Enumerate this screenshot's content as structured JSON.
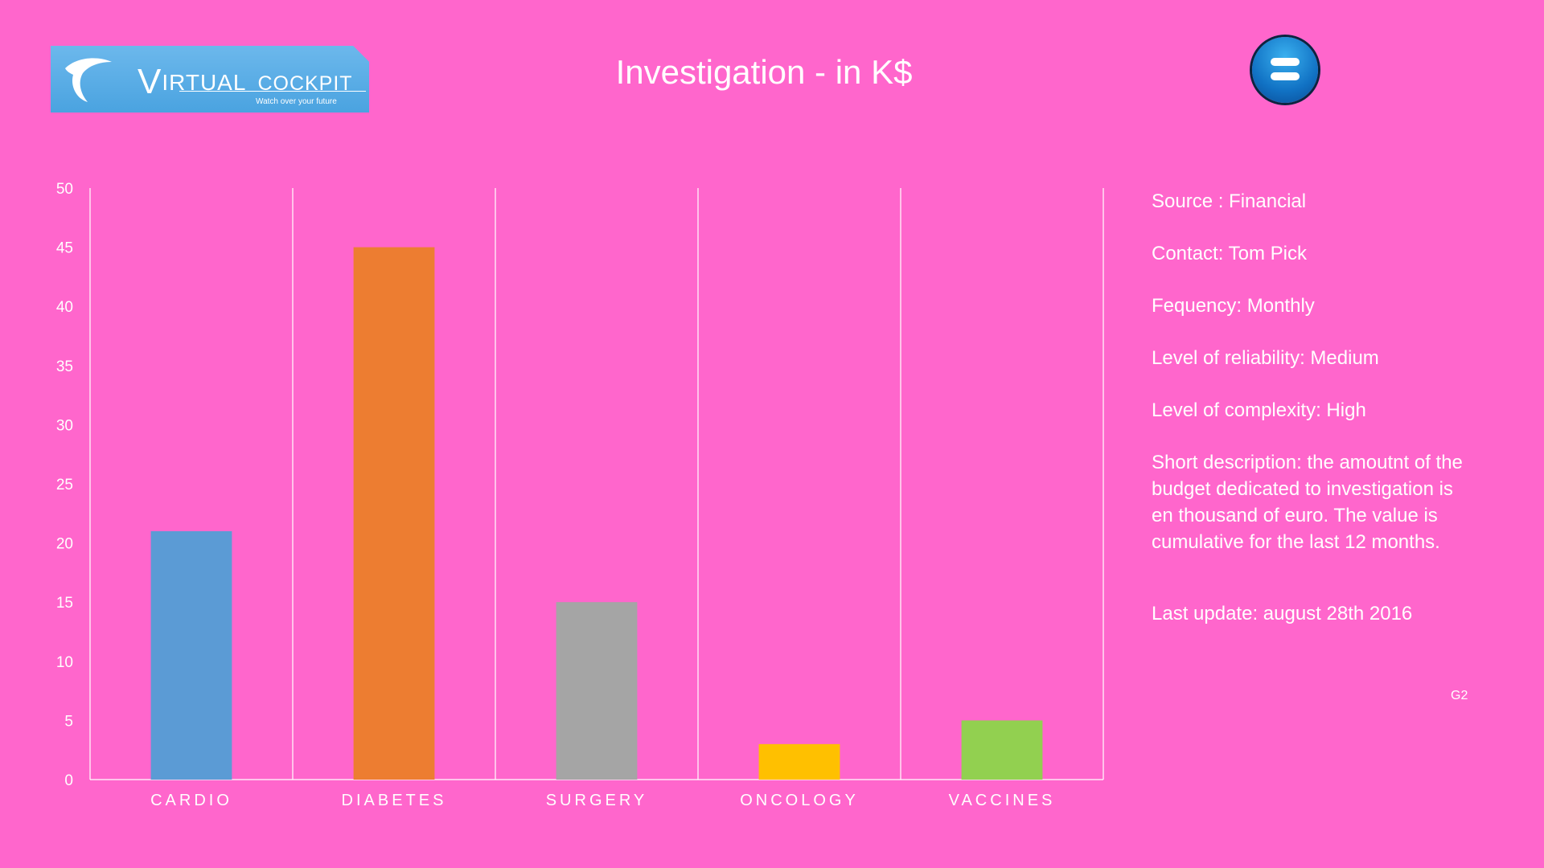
{
  "header": {
    "logo": {
      "brand_v": "V",
      "brand_rest": "IRTUAL",
      "brand_cockpit": "COCKPIT",
      "tagline": "Watch over your future"
    },
    "title": "Investigation - in K$",
    "menu_icon": "menu-icon"
  },
  "colors": {
    "background": "#ff66cc",
    "cardio": "#5b9bd5",
    "diabetes": "#ed7d31",
    "surgery": "#a5a5a5",
    "oncology": "#ffc000",
    "vaccines": "#92d050"
  },
  "chart_data": {
    "type": "bar",
    "categories": [
      "CARDIO",
      "DIABETES",
      "SURGERY",
      "ONCOLOGY",
      "VACCINES"
    ],
    "values": [
      21,
      45,
      15,
      3,
      5
    ],
    "colors": [
      "#5b9bd5",
      "#ed7d31",
      "#a5a5a5",
      "#ffc000",
      "#92d050"
    ],
    "ylim": [
      0,
      50
    ],
    "yticks": [
      0,
      5,
      10,
      15,
      20,
      25,
      30,
      35,
      40,
      45,
      50
    ],
    "grid": "vertical category separators"
  },
  "info": {
    "source": "Source : Financial",
    "contact": "Contact: Tom Pick",
    "frequency": "Fequency: Monthly",
    "reliability": "Level of reliability: Medium",
    "complexity": "Level of complexity:  High",
    "description": "Short description: the amoutnt of the budget dedicated to investigation is en thousand of euro.  The value is cumulative for the last 12 months.",
    "last_update": "Last update:  august 28th  2016",
    "code": "G2"
  }
}
